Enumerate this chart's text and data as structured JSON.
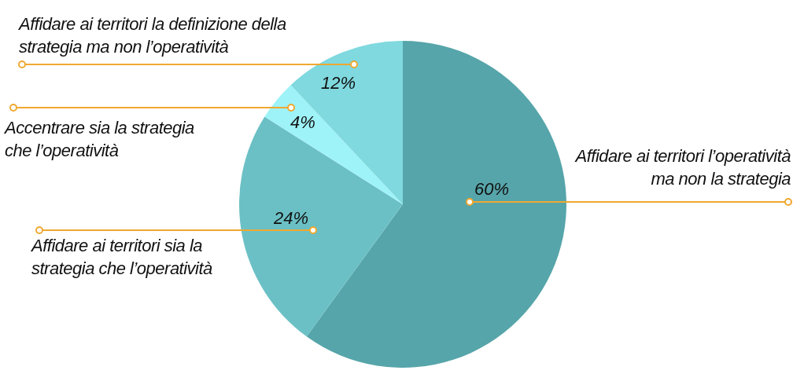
{
  "chart_data": {
    "type": "pie",
    "categories": [
      "Affidare ai territori l’operatività ma non la strategia",
      "Affidare ai territori sia la strategia che l’operatività",
      "Accentrare sia la strategia che l’operatività",
      "Affidare ai territori la definizione della strategia ma non l’operatività"
    ],
    "values": [
      60,
      24,
      4,
      12
    ],
    "colors": [
      "#56a5aa",
      "#6bc0c5",
      "#9ef3f8",
      "#7fd9df"
    ],
    "value_labels": [
      "60%",
      "24%",
      "4%",
      "12%"
    ]
  }
}
